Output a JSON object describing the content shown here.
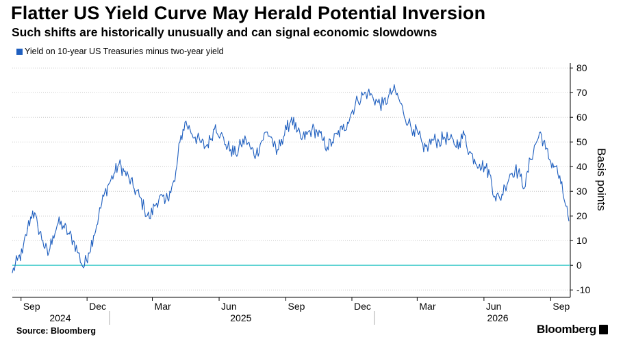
{
  "title": "Flatter US Yield Curve May Herald Potential Inversion",
  "subtitle": "Such shifts are historically unusually and can signal economic slowdowns",
  "source": "Source: Bloomberg",
  "brand": "Bloomberg",
  "colors": {
    "series": "#1f5fbf",
    "zero_line": "#5fd3d3",
    "grid": "#c8c8c8"
  },
  "chart_data": {
    "type": "line",
    "ylabel": "Basis points",
    "ylim": [
      -13,
      82
    ],
    "yticks": [
      -10,
      0,
      10,
      20,
      30,
      40,
      50,
      60,
      70,
      80
    ],
    "ytick_labels": [
      "-10",
      "0",
      "10",
      "20",
      "30",
      "40",
      "50",
      "60",
      "70",
      "80"
    ],
    "grid": true,
    "legend_position": "top-left",
    "xlim": [
      "2024-08-20",
      "2026-09-28"
    ],
    "x_ticks": [
      {
        "date": "2024-09-01",
        "label": "Sep"
      },
      {
        "date": "2024-12-01",
        "label": "Dec"
      },
      {
        "date": "2025-03-01",
        "label": "Mar"
      },
      {
        "date": "2025-06-01",
        "label": "Jun"
      },
      {
        "date": "2025-09-01",
        "label": "Sep"
      },
      {
        "date": "2025-12-01",
        "label": "Dec"
      },
      {
        "date": "2026-03-01",
        "label": "Mar"
      },
      {
        "date": "2026-06-01",
        "label": "Jun"
      },
      {
        "date": "2026-09-01",
        "label": "Sep"
      }
    ],
    "year_labels": [
      {
        "label": "2024",
        "center": "2024-10-25"
      },
      {
        "label": "2025",
        "center": "2025-07-01"
      },
      {
        "label": "2026",
        "center": "2026-06-20"
      }
    ],
    "year_boundaries": [
      "2025-01-01",
      "2026-01-01"
    ],
    "reference_lines": [
      {
        "y": 0
      }
    ],
    "series": [
      {
        "name": "Yield on 10-year US Treasuries minus two-year yield",
        "points": [
          [
            "2024-08-20",
            -3
          ],
          [
            "2024-08-27",
            2
          ],
          [
            "2024-09-03",
            5
          ],
          [
            "2024-09-10",
            15
          ],
          [
            "2024-09-17",
            22
          ],
          [
            "2024-09-24",
            16
          ],
          [
            "2024-10-01",
            10
          ],
          [
            "2024-10-08",
            4
          ],
          [
            "2024-10-15",
            12
          ],
          [
            "2024-10-22",
            17
          ],
          [
            "2024-10-29",
            16
          ],
          [
            "2024-11-05",
            13
          ],
          [
            "2024-11-12",
            10
          ],
          [
            "2024-11-19",
            5
          ],
          [
            "2024-11-26",
            -1
          ],
          [
            "2024-12-03",
            5
          ],
          [
            "2024-12-10",
            12
          ],
          [
            "2024-12-17",
            20
          ],
          [
            "2024-12-24",
            28
          ],
          [
            "2024-12-31",
            33
          ],
          [
            "2025-01-07",
            37
          ],
          [
            "2025-01-14",
            41
          ],
          [
            "2025-01-21",
            38
          ],
          [
            "2025-01-28",
            35
          ],
          [
            "2025-02-04",
            31
          ],
          [
            "2025-02-11",
            28
          ],
          [
            "2025-02-18",
            23
          ],
          [
            "2025-02-25",
            19
          ],
          [
            "2025-03-04",
            24
          ],
          [
            "2025-03-11",
            28
          ],
          [
            "2025-03-18",
            25
          ],
          [
            "2025-03-25",
            30
          ],
          [
            "2025-04-01",
            34
          ],
          [
            "2025-04-08",
            50
          ],
          [
            "2025-04-15",
            58
          ],
          [
            "2025-04-22",
            55
          ],
          [
            "2025-04-29",
            52
          ],
          [
            "2025-05-06",
            50
          ],
          [
            "2025-05-13",
            48
          ],
          [
            "2025-05-20",
            51
          ],
          [
            "2025-05-27",
            57
          ],
          [
            "2025-06-03",
            53
          ],
          [
            "2025-06-10",
            49
          ],
          [
            "2025-06-17",
            47
          ],
          [
            "2025-06-24",
            45
          ],
          [
            "2025-07-01",
            49
          ],
          [
            "2025-07-08",
            51
          ],
          [
            "2025-07-15",
            47
          ],
          [
            "2025-07-22",
            45
          ],
          [
            "2025-07-29",
            50
          ],
          [
            "2025-08-05",
            54
          ],
          [
            "2025-08-12",
            52
          ],
          [
            "2025-08-19",
            45
          ],
          [
            "2025-08-26",
            51
          ],
          [
            "2025-09-02",
            55
          ],
          [
            "2025-09-09",
            60
          ],
          [
            "2025-09-16",
            54
          ],
          [
            "2025-09-23",
            51
          ],
          [
            "2025-09-30",
            53
          ],
          [
            "2025-10-07",
            55
          ],
          [
            "2025-10-14",
            54
          ],
          [
            "2025-10-21",
            51
          ],
          [
            "2025-10-28",
            48
          ],
          [
            "2025-11-04",
            50
          ],
          [
            "2025-11-11",
            53
          ],
          [
            "2025-11-18",
            55
          ],
          [
            "2025-11-25",
            58
          ],
          [
            "2025-12-02",
            63
          ],
          [
            "2025-12-09",
            67
          ],
          [
            "2025-12-16",
            69
          ],
          [
            "2025-12-23",
            70
          ],
          [
            "2025-12-30",
            68
          ],
          [
            "2026-01-06",
            66
          ],
          [
            "2026-01-13",
            65
          ],
          [
            "2026-01-20",
            68
          ],
          [
            "2026-01-27",
            71
          ],
          [
            "2026-02-03",
            68
          ],
          [
            "2026-02-10",
            62
          ],
          [
            "2026-02-17",
            58
          ],
          [
            "2026-02-24",
            55
          ],
          [
            "2026-03-03",
            53
          ],
          [
            "2026-03-10",
            46
          ],
          [
            "2026-03-17",
            49
          ],
          [
            "2026-03-24",
            51
          ],
          [
            "2026-03-31",
            50
          ],
          [
            "2026-04-07",
            52
          ],
          [
            "2026-04-14",
            51
          ],
          [
            "2026-04-21",
            49
          ],
          [
            "2026-04-28",
            50
          ],
          [
            "2026-05-05",
            53
          ],
          [
            "2026-05-12",
            46
          ],
          [
            "2026-05-19",
            43
          ],
          [
            "2026-05-26",
            41
          ],
          [
            "2026-06-02",
            40
          ],
          [
            "2026-06-09",
            37
          ],
          [
            "2026-06-16",
            28
          ],
          [
            "2026-06-23",
            27
          ],
          [
            "2026-06-30",
            32
          ],
          [
            "2026-07-07",
            37
          ],
          [
            "2026-07-14",
            39
          ],
          [
            "2026-07-21",
            36
          ],
          [
            "2026-07-28",
            32
          ],
          [
            "2026-08-04",
            43
          ],
          [
            "2026-08-11",
            49
          ],
          [
            "2026-08-18",
            54
          ],
          [
            "2026-08-25",
            47
          ],
          [
            "2026-09-01",
            42
          ],
          [
            "2026-09-08",
            40
          ],
          [
            "2026-09-15",
            33
          ],
          [
            "2026-09-22",
            24
          ],
          [
            "2026-09-26",
            18
          ]
        ]
      }
    ]
  }
}
